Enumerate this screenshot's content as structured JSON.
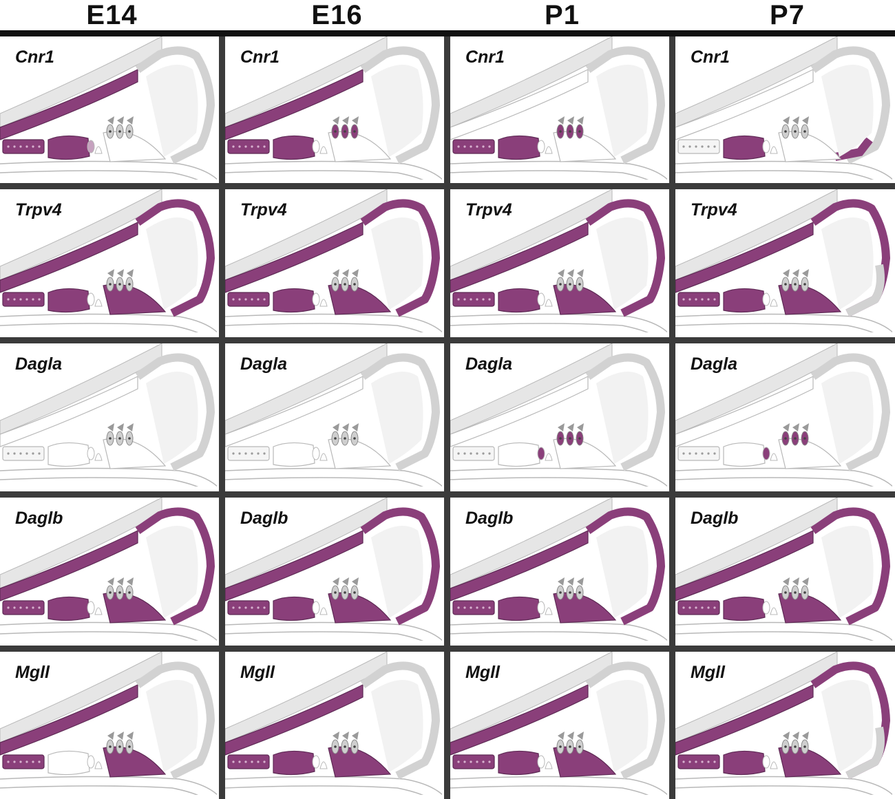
{
  "columns": [
    {
      "label": "E14"
    },
    {
      "label": "E16"
    },
    {
      "label": "P1"
    },
    {
      "label": "P7"
    }
  ],
  "colors": {
    "expressed": "#8a3f7a",
    "expressed_stroke": "#5e2a55",
    "membrane": "#e6e6e6",
    "cell_outline": "#b8b8b8",
    "hair_cell": "#9a9a9a",
    "divider": "#3b3b3b"
  },
  "rows": [
    {
      "gene": "Cnr1",
      "expression": [
        [
          "reissner",
          "gerd",
          "ler",
          "ihc_support"
        ],
        [
          "reissner",
          "gerd",
          "ler",
          "ohc"
        ],
        [
          "gerd",
          "ler",
          "ohc"
        ],
        [
          "ler",
          "outer_sulcus"
        ]
      ]
    },
    {
      "gene": "Trpv4",
      "expression": [
        [
          "reissner",
          "gerd",
          "ler",
          "support",
          "stria"
        ],
        [
          "reissner",
          "gerd",
          "ler",
          "support",
          "stria"
        ],
        [
          "reissner",
          "gerd",
          "ler",
          "support",
          "stria"
        ],
        [
          "reissner",
          "gerd",
          "ler",
          "support",
          "stria_upper"
        ]
      ]
    },
    {
      "gene": "Dagla",
      "expression": [
        [],
        [],
        [
          "ihc",
          "ohc"
        ],
        [
          "ihc",
          "ohc"
        ]
      ]
    },
    {
      "gene": "Daglb",
      "expression": [
        [
          "reissner",
          "gerd",
          "ler",
          "support",
          "stria"
        ],
        [
          "reissner",
          "gerd",
          "ler",
          "support",
          "stria"
        ],
        [
          "reissner",
          "gerd",
          "ler",
          "support",
          "stria"
        ],
        [
          "reissner",
          "gerd",
          "ler",
          "support",
          "stria"
        ]
      ]
    },
    {
      "gene": "Mgll",
      "expression": [
        [
          "reissner",
          "gerd",
          "support"
        ],
        [
          "reissner",
          "gerd",
          "ler",
          "support"
        ],
        [
          "reissner",
          "gerd",
          "ler",
          "support"
        ],
        [
          "reissner",
          "gerd",
          "ler",
          "support",
          "stria_upper"
        ]
      ]
    }
  ]
}
